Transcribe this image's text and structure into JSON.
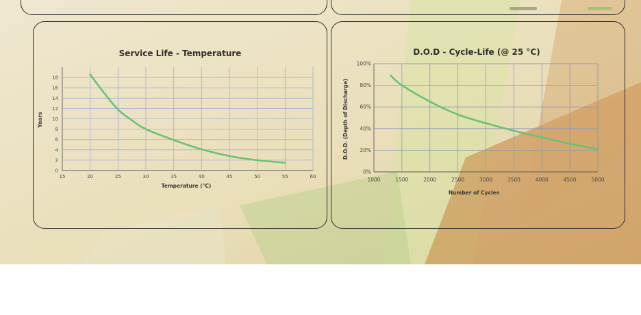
{
  "chart_data": [
    {
      "type": "line",
      "title": "Service Life - Temperature",
      "xlabel": "Temperature (°C)",
      "ylabel": "Years",
      "xlim": [
        15,
        60
      ],
      "ylim": [
        0,
        20
      ],
      "x_ticks": [
        "15",
        "20",
        "25",
        "30",
        "35",
        "40",
        "45",
        "50",
        "55",
        "60"
      ],
      "y_ticks": [
        "0",
        "2",
        "4",
        "6",
        "8",
        "10",
        "12",
        "14",
        "16",
        "18"
      ],
      "grid": true,
      "line_color": "#6cc076",
      "series": [
        {
          "x": [
            20,
            22.5,
            25,
            27.5,
            30,
            35,
            40,
            45,
            50,
            55
          ],
          "values": [
            18.6,
            15,
            11.8,
            9.7,
            8,
            5.9,
            4.1,
            2.8,
            2.0,
            1.5
          ]
        }
      ]
    },
    {
      "type": "line",
      "title": "D.O.D - Cycle-Life (@ 25 °C)",
      "xlabel": "Number of Cycles",
      "ylabel": "D.O.D. (Depth of Discharge)",
      "xlim": [
        1000,
        5000
      ],
      "ylim": [
        0,
        100
      ],
      "x_ticks": [
        "1000",
        "1500",
        "2000",
        "2500",
        "3000",
        "3500",
        "4000",
        "4500",
        "5000"
      ],
      "y_ticks": [
        "0%",
        "20%",
        "40%",
        "60%",
        "80%",
        "100%"
      ],
      "grid": true,
      "line_color": "#6cc076",
      "series": [
        {
          "x": [
            1300,
            1500,
            2000,
            2500,
            3000,
            3500,
            4000,
            4500,
            5000
          ],
          "values": [
            89,
            80,
            65,
            53,
            45,
            38,
            32,
            26,
            21
          ]
        }
      ]
    }
  ]
}
